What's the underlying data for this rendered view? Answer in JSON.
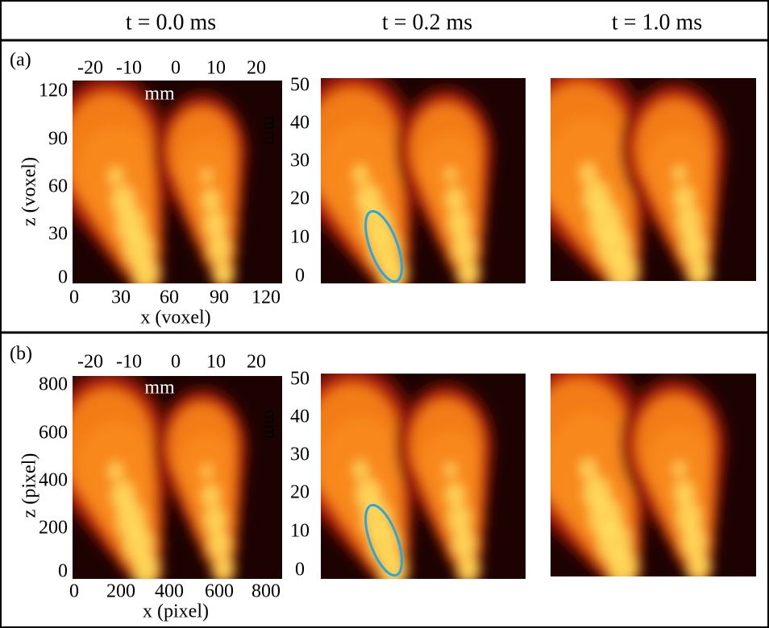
{
  "header": {
    "times": [
      "t = 0.0 ms",
      "t = 0.2 ms",
      "t = 1.0 ms"
    ]
  },
  "rows": [
    {
      "label": "(a)",
      "top_ticks": [
        "-20",
        "-10",
        "0",
        "10",
        "20"
      ],
      "top_unit": "mm",
      "left_ticks": [
        "120",
        "90",
        "60",
        "30",
        "0"
      ],
      "left_label": "z (voxel)",
      "bottom_ticks": [
        "0",
        "30",
        "60",
        "90",
        "120"
      ],
      "bottom_label": "x (voxel)",
      "mm_ticks": [
        "50",
        "40",
        "30",
        "20",
        "10",
        "0"
      ],
      "mm_label": "mm"
    },
    {
      "label": "(b)",
      "top_ticks": [
        "-20",
        "-10",
        "0",
        "10",
        "20"
      ],
      "top_unit": "mm",
      "left_ticks": [
        "800",
        "600",
        "400",
        "200",
        "0"
      ],
      "left_label": "z (pixel)",
      "bottom_ticks": [
        "0",
        "200",
        "400",
        "600",
        "800"
      ],
      "bottom_label": "x (pixel)",
      "mm_ticks": [
        "50",
        "40",
        "30",
        "20",
        "10",
        "0"
      ],
      "mm_label": "mm"
    }
  ]
}
